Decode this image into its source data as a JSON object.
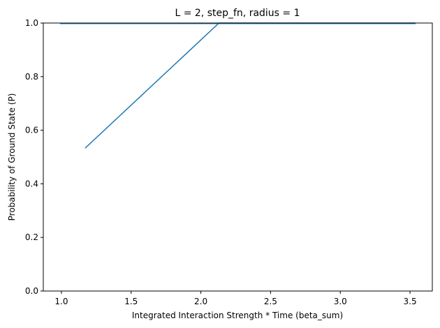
{
  "chart_data": {
    "type": "line",
    "title": "L = 2, step_fn, radius = 1",
    "xlabel": "Integrated Interaction Strength * Time (beta_sum)",
    "ylabel": "Probability of Ground State (P)",
    "xlim": [
      0.87,
      3.66
    ],
    "ylim": [
      0.0,
      1.0
    ],
    "xticks": [
      "1.0",
      "1.5",
      "2.0",
      "2.5",
      "3.0",
      "3.5"
    ],
    "yticks": [
      "0.0",
      "0.2",
      "0.4",
      "0.6",
      "0.8",
      "1.0"
    ],
    "grid": false,
    "legend": "none",
    "series": [
      {
        "color": "#1f77b4",
        "x": [
          1.17,
          2.13,
          3.54
        ],
        "y": [
          0.533,
          1.0,
          1.0
        ]
      },
      {
        "color": "#1f77b4",
        "x": [
          0.99,
          3.54
        ],
        "y": [
          0.998,
          0.998
        ]
      }
    ]
  }
}
